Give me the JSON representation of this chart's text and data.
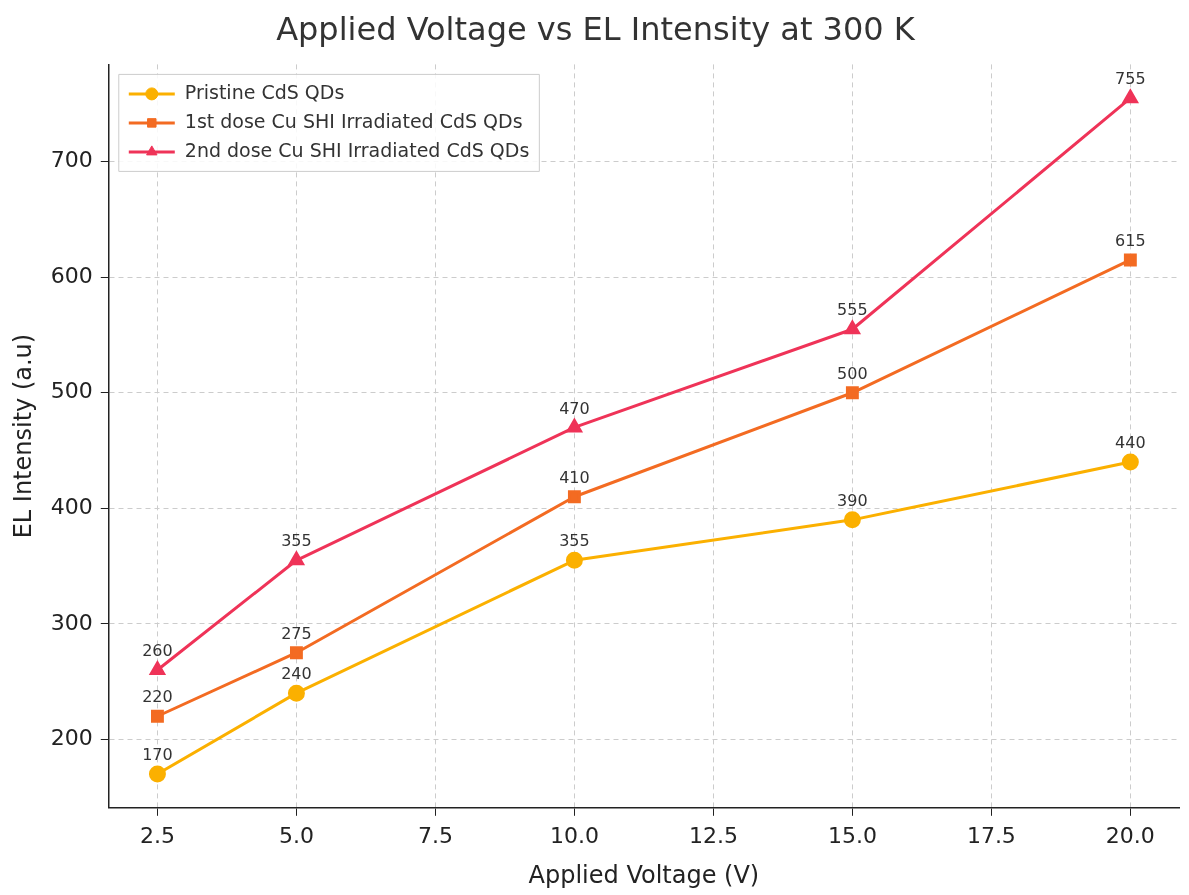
{
  "chart_data": {
    "type": "line",
    "title": "Applied Voltage vs EL Intensity at 300 K",
    "xlabel": "Applied Voltage (V)",
    "ylabel": "EL Intensity (a.u)",
    "x": [
      2.5,
      5,
      10,
      15,
      20
    ],
    "series": [
      {
        "name": "Pristine CdS QDs",
        "color": "#fbb000",
        "marker": "circle",
        "values": [
          170,
          240,
          355,
          390,
          440
        ]
      },
      {
        "name": "1st dose Cu SHI Irradiated CdS QDs",
        "color": "#f36b22",
        "marker": "square",
        "values": [
          220,
          275,
          410,
          500,
          615
        ]
      },
      {
        "name": "2nd dose Cu SHI Irradiated CdS QDs",
        "color": "#ef3358",
        "marker": "triangle",
        "values": [
          260,
          355,
          470,
          555,
          755
        ]
      }
    ],
    "xlim": [
      1.625,
      20.875
    ],
    "xticks": [
      {
        "value": 2.5,
        "label": "2.5"
      },
      {
        "value": 5,
        "label": "5.0"
      },
      {
        "value": 7.5,
        "label": "7.5"
      },
      {
        "value": 10,
        "label": "10.0"
      },
      {
        "value": 12.5,
        "label": "12.5"
      },
      {
        "value": 15,
        "label": "15.0"
      },
      {
        "value": 17.5,
        "label": "17.5"
      },
      {
        "value": 20,
        "label": "20.0"
      }
    ],
    "ylim": [
      140.75,
      784.25
    ],
    "yticks": [
      200,
      300,
      400,
      500,
      600,
      700
    ],
    "grid": true,
    "legend": "top left",
    "data_labels": true,
    "line_style": "solid"
  }
}
